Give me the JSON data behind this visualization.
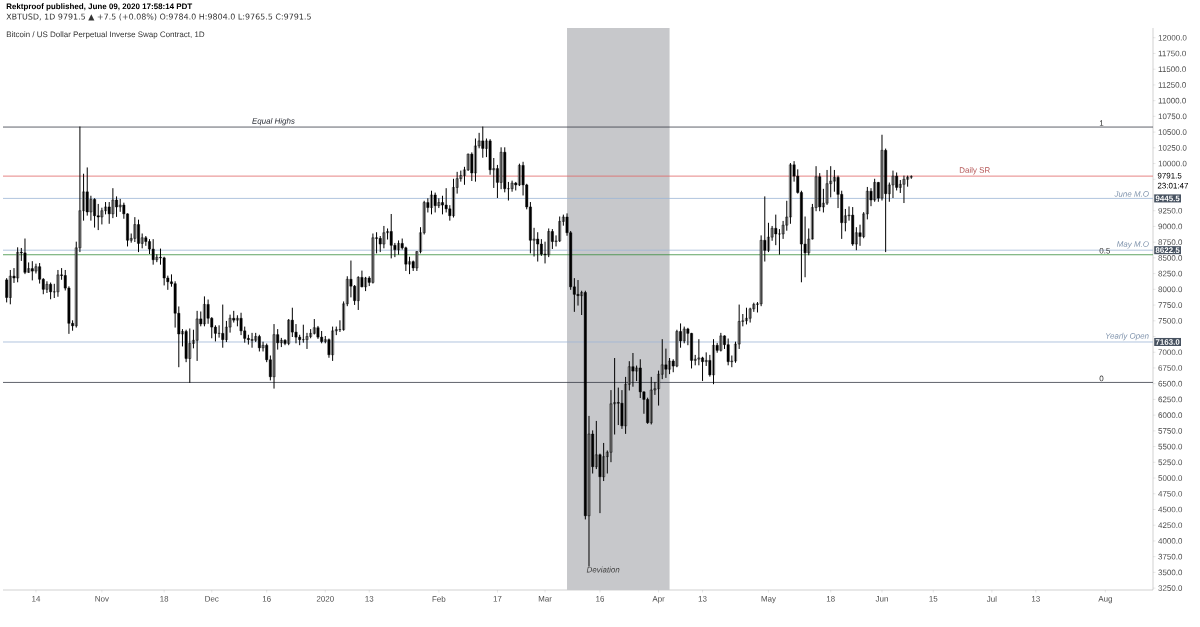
{
  "chart_data": {
    "type": "candlestick",
    "title": "Bitcoin / US Dollar Perpetual Inverse Swap Contract, 1D",
    "subtitle": "XBTUSD, 1D 9791.5 ▲ +7.5 (+0.08%) O:9784.0 H:9804.0 L:9765.5 C:9791.5",
    "color": "#000000",
    "x": [
      "2019-10-06",
      "2019-10-07",
      "2019-10-08",
      "2019-10-09",
      "2019-10-10",
      "2019-10-11",
      "2019-10-12",
      "2019-10-13",
      "2019-10-14",
      "2019-10-15",
      "2019-10-16",
      "2019-10-17",
      "2019-10-18",
      "2019-10-19",
      "2019-10-20",
      "2019-10-21",
      "2019-10-22",
      "2019-10-23",
      "2019-10-24",
      "2019-10-25",
      "2019-10-26",
      "2019-10-27",
      "2019-10-28",
      "2019-10-29",
      "2019-10-30",
      "2019-10-31",
      "2019-11-01",
      "2019-11-02",
      "2019-11-03",
      "2019-11-04",
      "2019-11-05",
      "2019-11-06",
      "2019-11-07",
      "2019-11-08",
      "2019-11-09",
      "2019-11-10",
      "2019-11-11",
      "2019-11-12",
      "2019-11-13",
      "2019-11-14",
      "2019-11-15",
      "2019-11-16",
      "2019-11-17",
      "2019-11-18",
      "2019-11-19",
      "2019-11-20",
      "2019-11-21",
      "2019-11-22",
      "2019-11-23",
      "2019-11-24",
      "2019-11-25",
      "2019-11-26",
      "2019-11-27",
      "2019-11-28",
      "2019-11-29",
      "2019-11-30",
      "2019-12-01",
      "2019-12-02",
      "2019-12-03",
      "2019-12-04",
      "2019-12-05",
      "2019-12-06",
      "2019-12-07",
      "2019-12-08",
      "2019-12-09",
      "2019-12-10",
      "2019-12-11",
      "2019-12-12",
      "2019-12-13",
      "2019-12-14",
      "2019-12-15",
      "2019-12-16",
      "2019-12-17",
      "2019-12-18",
      "2019-12-19",
      "2019-12-20",
      "2019-12-21",
      "2019-12-22",
      "2019-12-23",
      "2019-12-24",
      "2019-12-25",
      "2019-12-26",
      "2019-12-27",
      "2019-12-28",
      "2019-12-29",
      "2019-12-30",
      "2019-12-31",
      "2020-01-01",
      "2020-01-02",
      "2020-01-03",
      "2020-01-04",
      "2020-01-05",
      "2020-01-06",
      "2020-01-07",
      "2020-01-08",
      "2020-01-09",
      "2020-01-10",
      "2020-01-11",
      "2020-01-12",
      "2020-01-13",
      "2020-01-14",
      "2020-01-15",
      "2020-01-16",
      "2020-01-17",
      "2020-01-18",
      "2020-01-19",
      "2020-01-20",
      "2020-01-21",
      "2020-01-22",
      "2020-01-23",
      "2020-01-24",
      "2020-01-25",
      "2020-01-26",
      "2020-01-27",
      "2020-01-28",
      "2020-01-29",
      "2020-01-30",
      "2020-01-31",
      "2020-02-01",
      "2020-02-02",
      "2020-02-03",
      "2020-02-04",
      "2020-02-05",
      "2020-02-06",
      "2020-02-07",
      "2020-02-08",
      "2020-02-09",
      "2020-02-10",
      "2020-02-11",
      "2020-02-12",
      "2020-02-13",
      "2020-02-14",
      "2020-02-15",
      "2020-02-16",
      "2020-02-17",
      "2020-02-18",
      "2020-02-19",
      "2020-02-20",
      "2020-02-21",
      "2020-02-22",
      "2020-02-23",
      "2020-02-24",
      "2020-02-25",
      "2020-02-26",
      "2020-02-27",
      "2020-02-28",
      "2020-02-29",
      "2020-03-01",
      "2020-03-02",
      "2020-03-03",
      "2020-03-04",
      "2020-03-05",
      "2020-03-06",
      "2020-03-07",
      "2020-03-08",
      "2020-03-09",
      "2020-03-10",
      "2020-03-11",
      "2020-03-12",
      "2020-03-13",
      "2020-03-14",
      "2020-03-15",
      "2020-03-16",
      "2020-03-17",
      "2020-03-18",
      "2020-03-19",
      "2020-03-20",
      "2020-03-21",
      "2020-03-22",
      "2020-03-23",
      "2020-03-24",
      "2020-03-25",
      "2020-03-26",
      "2020-03-27",
      "2020-03-28",
      "2020-03-29",
      "2020-03-30",
      "2020-03-31",
      "2020-04-01",
      "2020-04-02",
      "2020-04-03",
      "2020-04-04",
      "2020-04-05",
      "2020-04-06",
      "2020-04-07",
      "2020-04-08",
      "2020-04-09",
      "2020-04-10",
      "2020-04-11",
      "2020-04-12",
      "2020-04-13",
      "2020-04-14",
      "2020-04-15",
      "2020-04-16",
      "2020-04-17",
      "2020-04-18",
      "2020-04-19",
      "2020-04-20",
      "2020-04-21",
      "2020-04-22",
      "2020-04-23",
      "2020-04-24",
      "2020-04-25",
      "2020-04-26",
      "2020-04-27",
      "2020-04-28",
      "2020-04-29",
      "2020-04-30",
      "2020-05-01",
      "2020-05-02",
      "2020-05-03",
      "2020-05-04",
      "2020-05-05",
      "2020-05-06",
      "2020-05-07",
      "2020-05-08",
      "2020-05-09",
      "2020-05-10",
      "2020-05-11",
      "2020-05-12",
      "2020-05-13",
      "2020-05-14",
      "2020-05-15",
      "2020-05-16",
      "2020-05-17",
      "2020-05-18",
      "2020-05-19",
      "2020-05-20",
      "2020-05-21",
      "2020-05-22",
      "2020-05-23",
      "2020-05-24",
      "2020-05-25",
      "2020-05-26",
      "2020-05-27",
      "2020-05-28",
      "2020-05-29",
      "2020-05-30",
      "2020-05-31",
      "2020-06-01",
      "2020-06-02",
      "2020-06-03",
      "2020-06-04",
      "2020-06-05",
      "2020-06-06",
      "2020-06-07",
      "2020-06-08",
      "2020-06-09"
    ],
    "ohlc": [
      [
        8150,
        8170,
        7800,
        7870
      ],
      [
        7870,
        8300,
        7770,
        8210
      ],
      [
        8210,
        8330,
        8110,
        8180
      ],
      [
        8180,
        8660,
        8120,
        8590
      ],
      [
        8590,
        8650,
        8460,
        8580
      ],
      [
        8580,
        8800,
        8250,
        8270
      ],
      [
        8270,
        8420,
        8270,
        8330
      ],
      [
        8330,
        8440,
        8150,
        8290
      ],
      [
        8290,
        8400,
        8260,
        8360
      ],
      [
        8360,
        8410,
        8100,
        8160
      ],
      [
        8160,
        8170,
        7930,
        8000
      ],
      [
        8000,
        8120,
        7950,
        8080
      ],
      [
        8080,
        8100,
        7850,
        7960
      ],
      [
        7960,
        8080,
        7870,
        7960
      ],
      [
        7960,
        8300,
        7890,
        8230
      ],
      [
        8230,
        8330,
        8160,
        8220
      ],
      [
        8220,
        8300,
        7990,
        8020
      ],
      [
        8020,
        8040,
        7300,
        7460
      ],
      [
        7460,
        7500,
        7350,
        7420
      ],
      [
        7420,
        8750,
        7400,
        8660
      ],
      [
        8660,
        10580,
        8600,
        9250
      ],
      [
        9250,
        9830,
        9100,
        9550
      ],
      [
        9550,
        9930,
        9180,
        9230
      ],
      [
        9230,
        9480,
        9100,
        9430
      ],
      [
        9430,
        9440,
        8990,
        9170
      ],
      [
        9170,
        9350,
        8950,
        9150
      ],
      [
        9150,
        9290,
        9040,
        9250
      ],
      [
        9250,
        9380,
        9200,
        9310
      ],
      [
        9310,
        9380,
        9050,
        9200
      ],
      [
        9200,
        9600,
        9140,
        9420
      ],
      [
        9420,
        9470,
        9160,
        9310
      ],
      [
        9310,
        9430,
        9240,
        9340
      ],
      [
        9340,
        9370,
        9130,
        9200
      ],
      [
        9200,
        9200,
        8690,
        8780
      ],
      [
        8780,
        8880,
        8750,
        8810
      ],
      [
        8810,
        9140,
        8760,
        9030
      ],
      [
        9030,
        9100,
        8600,
        8730
      ],
      [
        8730,
        8880,
        8660,
        8820
      ],
      [
        8820,
        8840,
        8700,
        8760
      ],
      [
        8760,
        8790,
        8570,
        8640
      ],
      [
        8640,
        8790,
        8400,
        8470
      ],
      [
        8470,
        8550,
        8440,
        8510
      ],
      [
        8510,
        8640,
        8400,
        8500
      ],
      [
        8500,
        8510,
        8070,
        8180
      ],
      [
        8180,
        8210,
        8000,
        8120
      ],
      [
        8120,
        8230,
        8050,
        8090
      ],
      [
        8090,
        8120,
        7400,
        7620
      ],
      [
        7620,
        7720,
        6770,
        7290
      ],
      [
        7290,
        7360,
        7100,
        7330
      ],
      [
        7330,
        7350,
        6850,
        6900
      ],
      [
        6900,
        7370,
        6520,
        7140
      ],
      [
        7140,
        7350,
        7070,
        7190
      ],
      [
        7190,
        7650,
        6870,
        7530
      ],
      [
        7530,
        7640,
        7420,
        7450
      ],
      [
        7450,
        7880,
        7420,
        7760
      ],
      [
        7760,
        7830,
        7460,
        7540
      ],
      [
        7540,
        7550,
        7230,
        7400
      ],
      [
        7400,
        7420,
        7180,
        7300
      ],
      [
        7300,
        7420,
        7240,
        7300
      ],
      [
        7300,
        7750,
        7080,
        7200
      ],
      [
        7200,
        7490,
        7170,
        7400
      ],
      [
        7400,
        7590,
        7320,
        7540
      ],
      [
        7540,
        7650,
        7480,
        7510
      ],
      [
        7510,
        7580,
        7420,
        7540
      ],
      [
        7540,
        7620,
        7280,
        7340
      ],
      [
        7340,
        7400,
        7160,
        7220
      ],
      [
        7220,
        7270,
        7130,
        7200
      ],
      [
        7200,
        7300,
        7080,
        7190
      ],
      [
        7190,
        7300,
        7170,
        7250
      ],
      [
        7250,
        7270,
        7020,
        7070
      ],
      [
        7070,
        7160,
        7020,
        7110
      ],
      [
        7110,
        7130,
        6850,
        6880
      ],
      [
        6880,
        6940,
        6560,
        6610
      ],
      [
        6610,
        7440,
        6430,
        7280
      ],
      [
        7280,
        7360,
        7050,
        7150
      ],
      [
        7150,
        7220,
        7090,
        7190
      ],
      [
        7190,
        7200,
        7120,
        7140
      ],
      [
        7140,
        7520,
        7120,
        7510
      ],
      [
        7510,
        7700,
        7250,
        7320
      ],
      [
        7320,
        7440,
        7150,
        7240
      ],
      [
        7240,
        7270,
        7120,
        7200
      ],
      [
        7200,
        7430,
        7160,
        7200
      ],
      [
        7200,
        7300,
        7060,
        7250
      ],
      [
        7250,
        7360,
        7230,
        7300
      ],
      [
        7300,
        7520,
        7290,
        7390
      ],
      [
        7390,
        7410,
        7220,
        7240
      ],
      [
        7240,
        7330,
        7150,
        7170
      ],
      [
        7170,
        7250,
        7150,
        7200
      ],
      [
        7200,
        7210,
        6920,
        6960
      ],
      [
        6960,
        7400,
        6870,
        7340
      ],
      [
        7340,
        7400,
        7280,
        7360
      ],
      [
        7360,
        7500,
        7330,
        7360
      ],
      [
        7360,
        7800,
        7350,
        7770
      ],
      [
        7770,
        8200,
        7740,
        8160
      ],
      [
        8160,
        8450,
        7880,
        8050
      ],
      [
        8050,
        8060,
        7760,
        7820
      ],
      [
        7820,
        8200,
        7680,
        8190
      ],
      [
        8190,
        8290,
        8040,
        8040
      ],
      [
        8040,
        8190,
        7980,
        8180
      ],
      [
        8180,
        8200,
        8060,
        8110
      ],
      [
        8110,
        8880,
        8100,
        8820
      ],
      [
        8820,
        8900,
        8580,
        8810
      ],
      [
        8810,
        8840,
        8600,
        8720
      ],
      [
        8720,
        9000,
        8660,
        8900
      ],
      [
        8900,
        8960,
        8800,
        8920
      ],
      [
        8920,
        9190,
        8500,
        8700
      ],
      [
        8700,
        8730,
        8520,
        8630
      ],
      [
        8630,
        8770,
        8560,
        8730
      ],
      [
        8730,
        8800,
        8640,
        8660
      ],
      [
        8660,
        8670,
        8300,
        8400
      ],
      [
        8400,
        8510,
        8250,
        8440
      ],
      [
        8440,
        8450,
        8300,
        8340
      ],
      [
        8340,
        8600,
        8300,
        8600
      ],
      [
        8600,
        8980,
        8580,
        8900
      ],
      [
        8900,
        9400,
        8880,
        9380
      ],
      [
        9380,
        9440,
        9230,
        9300
      ],
      [
        9300,
        9560,
        9200,
        9500
      ],
      [
        9500,
        9530,
        9230,
        9330
      ],
      [
        9330,
        9440,
        9300,
        9380
      ],
      [
        9380,
        9480,
        9200,
        9340
      ],
      [
        9340,
        9600,
        9230,
        9280
      ],
      [
        9280,
        9330,
        9100,
        9170
      ],
      [
        9170,
        9750,
        9150,
        9620
      ],
      [
        9620,
        9860,
        9530,
        9760
      ],
      [
        9760,
        9880,
        9720,
        9810
      ],
      [
        9810,
        9940,
        9670,
        9900
      ],
      [
        9900,
        10150,
        9890,
        10150
      ],
      [
        10150,
        10170,
        9730,
        9850
      ],
      [
        9850,
        10390,
        9720,
        10280
      ],
      [
        10280,
        10480,
        10250,
        10360
      ],
      [
        10360,
        10580,
        10100,
        10240
      ],
      [
        10240,
        10390,
        10110,
        10360
      ],
      [
        10360,
        10380,
        9830,
        9900
      ],
      [
        9900,
        10080,
        9620,
        9920
      ],
      [
        9920,
        9970,
        9460,
        9700
      ],
      [
        9700,
        10250,
        9600,
        10180
      ],
      [
        10180,
        10250,
        9550,
        9600
      ],
      [
        9600,
        9700,
        9420,
        9600
      ],
      [
        9600,
        9720,
        9560,
        9690
      ],
      [
        9690,
        9700,
        9580,
        9660
      ],
      [
        9660,
        9990,
        9650,
        9970
      ],
      [
        9970,
        10020,
        9500,
        9660
      ],
      [
        9660,
        9670,
        9280,
        9310
      ],
      [
        9310,
        9380,
        8580,
        8780
      ],
      [
        8780,
        8970,
        8530,
        8800
      ],
      [
        8800,
        8900,
        8450,
        8720
      ],
      [
        8720,
        8790,
        8540,
        8560
      ],
      [
        8560,
        8750,
        8420,
        8550
      ],
      [
        8550,
        8960,
        8520,
        8920
      ],
      [
        8920,
        8950,
        8650,
        8760
      ],
      [
        8760,
        8850,
        8690,
        8770
      ],
      [
        8770,
        9150,
        8760,
        9080
      ],
      [
        9080,
        9180,
        9020,
        9150
      ],
      [
        9150,
        9200,
        8860,
        8900
      ],
      [
        8900,
        8920,
        8000,
        8040
      ],
      [
        8040,
        8170,
        7650,
        7920
      ],
      [
        7920,
        8140,
        7750,
        7900
      ],
      [
        7900,
        7970,
        7600,
        7950
      ],
      [
        7950,
        7970,
        4350,
        4400
      ],
      [
        4400,
        5980,
        3600,
        5700
      ],
      [
        5700,
        5750,
        5080,
        5180
      ],
      [
        5180,
        5900,
        5150,
        5370
      ],
      [
        5370,
        5380,
        4450,
        5020
      ],
      [
        5020,
        5550,
        4960,
        5340
      ],
      [
        5340,
        5430,
        5080,
        5410
      ],
      [
        5410,
        6390,
        5260,
        6180
      ],
      [
        6180,
        6900,
        5700,
        6200
      ],
      [
        6200,
        6430,
        5850,
        6190
      ],
      [
        6190,
        6390,
        5790,
        5830
      ],
      [
        5830,
        6600,
        5710,
        6490
      ],
      [
        6490,
        6850,
        6400,
        6770
      ],
      [
        6770,
        6980,
        6460,
        6700
      ],
      [
        6700,
        6780,
        6550,
        6750
      ],
      [
        6750,
        6880,
        6280,
        6370
      ],
      [
        6370,
        6370,
        6030,
        6250
      ],
      [
        6250,
        6270,
        5870,
        5880
      ],
      [
        5880,
        6600,
        5860,
        6400
      ],
      [
        6400,
        6520,
        6330,
        6420
      ],
      [
        6420,
        6700,
        6160,
        6650
      ],
      [
        6650,
        7200,
        6580,
        6800
      ],
      [
        6800,
        7050,
        6600,
        6730
      ],
      [
        6730,
        6900,
        6660,
        6860
      ],
      [
        6860,
        6880,
        6690,
        6780
      ],
      [
        6780,
        7350,
        6770,
        7330
      ],
      [
        7330,
        7450,
        7080,
        7180
      ],
      [
        7180,
        7400,
        7150,
        7370
      ],
      [
        7370,
        7380,
        7120,
        7300
      ],
      [
        7300,
        7300,
        6750,
        6870
      ],
      [
        6870,
        6950,
        6800,
        6890
      ],
      [
        6890,
        7200,
        6800,
        6910
      ],
      [
        6910,
        6920,
        6550,
        6850
      ],
      [
        6850,
        6990,
        6790,
        6870
      ],
      [
        6870,
        6950,
        6620,
        6640
      ],
      [
        6640,
        7200,
        6500,
        7110
      ],
      [
        7110,
        7140,
        7000,
        7030
      ],
      [
        7030,
        7300,
        7020,
        7260
      ],
      [
        7260,
        7260,
        7060,
        7120
      ],
      [
        7120,
        7210,
        6800,
        6850
      ],
      [
        6850,
        6940,
        6770,
        6860
      ],
      [
        6860,
        7160,
        6840,
        7130
      ],
      [
        7130,
        7750,
        7060,
        7490
      ],
      [
        7490,
        7600,
        7420,
        7500
      ],
      [
        7500,
        7700,
        7450,
        7540
      ],
      [
        7540,
        7700,
        7480,
        7690
      ],
      [
        7690,
        7780,
        7650,
        7760
      ],
      [
        7760,
        7790,
        7640,
        7770
      ],
      [
        7770,
        8850,
        7740,
        8780
      ],
      [
        8780,
        9470,
        8450,
        8620
      ],
      [
        8620,
        9050,
        8600,
        8830
      ],
      [
        8830,
        9000,
        8780,
        8970
      ],
      [
        8970,
        9180,
        8710,
        8880
      ],
      [
        8880,
        8950,
        8560,
        8880
      ],
      [
        8880,
        9080,
        8810,
        9020
      ],
      [
        9020,
        9400,
        8940,
        9150
      ],
      [
        9150,
        10000,
        9050,
        9980
      ],
      [
        9980,
        10030,
        9720,
        9800
      ],
      [
        9800,
        9900,
        9530,
        9540
      ],
      [
        9540,
        9560,
        8120,
        8720
      ],
      [
        8720,
        9150,
        8200,
        8580
      ],
      [
        8580,
        8960,
        8550,
        8800
      ],
      [
        8800,
        9350,
        8800,
        9300
      ],
      [
        9300,
        9950,
        9250,
        9790
      ],
      [
        9790,
        9840,
        9250,
        9310
      ],
      [
        9310,
        9590,
        9230,
        9370
      ],
      [
        9370,
        9890,
        9350,
        9680
      ],
      [
        9680,
        9950,
        9470,
        9720
      ],
      [
        9720,
        9890,
        9560,
        9780
      ],
      [
        9780,
        9800,
        9300,
        9510
      ],
      [
        9510,
        9560,
        8810,
        9060
      ],
      [
        9060,
        9270,
        8930,
        9170
      ],
      [
        9170,
        9310,
        9100,
        9180
      ],
      [
        9180,
        9300,
        8700,
        8720
      ],
      [
        8720,
        8980,
        8630,
        8900
      ],
      [
        8900,
        9020,
        8700,
        8840
      ],
      [
        8840,
        9220,
        8820,
        9200
      ],
      [
        9200,
        9620,
        9120,
        9560
      ],
      [
        9560,
        9600,
        9330,
        9420
      ],
      [
        9420,
        9750,
        9400,
        9700
      ],
      [
        9700,
        9700,
        9400,
        9450
      ],
      [
        9450,
        10450,
        9420,
        10210
      ],
      [
        10210,
        10230,
        8600,
        9520
      ],
      [
        9520,
        9690,
        9400,
        9660
      ],
      [
        9660,
        9880,
        9460,
        9800
      ],
      [
        9800,
        9850,
        9580,
        9620
      ],
      [
        9620,
        9730,
        9540,
        9670
      ],
      [
        9670,
        9800,
        9380,
        9750
      ],
      [
        9750,
        9800,
        9640,
        9784
      ],
      [
        9784,
        9804,
        9765.5,
        9791.5
      ]
    ],
    "xlim": [
      "2019-10-05",
      "2020-08-14"
    ],
    "xticks": [
      {
        "value": "2019-10-14",
        "label": "14"
      },
      {
        "value": "2019-11-01",
        "label": "Nov"
      },
      {
        "value": "2019-11-18",
        "label": "18"
      },
      {
        "value": "2019-12-01",
        "label": "Dec"
      },
      {
        "value": "2019-12-16",
        "label": "16"
      },
      {
        "value": "2020-01-01",
        "label": "2020"
      },
      {
        "value": "2020-01-13",
        "label": "13"
      },
      {
        "value": "2020-02-01",
        "label": "Feb"
      },
      {
        "value": "2020-02-17",
        "label": "17"
      },
      {
        "value": "2020-03-01",
        "label": "Mar"
      },
      {
        "value": "2020-03-16",
        "label": "16"
      },
      {
        "value": "2020-04-01",
        "label": "Apr"
      },
      {
        "value": "2020-04-13",
        "label": "13"
      },
      {
        "value": "2020-05-01",
        "label": "May"
      },
      {
        "value": "2020-05-18",
        "label": "18"
      },
      {
        "value": "2020-06-01",
        "label": "Jun"
      },
      {
        "value": "2020-06-15",
        "label": "15"
      },
      {
        "value": "2020-07-01",
        "label": "Jul"
      },
      {
        "value": "2020-07-13",
        "label": "13"
      },
      {
        "value": "2020-08-01",
        "label": "Aug"
      }
    ],
    "ylim": [
      3220,
      12155
    ],
    "yticks": [
      {
        "value": 3250,
        "label": "3250.0"
      },
      {
        "value": 3500,
        "label": "3500.0"
      },
      {
        "value": 3750,
        "label": "3750.0"
      },
      {
        "value": 4000,
        "label": "4000.0"
      },
      {
        "value": 4250,
        "label": "4250.0"
      },
      {
        "value": 4500,
        "label": "4500.0"
      },
      {
        "value": 4750,
        "label": "4750.0"
      },
      {
        "value": 5000,
        "label": "5000.0"
      },
      {
        "value": 5250,
        "label": "5250.0"
      },
      {
        "value": 5500,
        "label": "5500.0"
      },
      {
        "value": 5750,
        "label": "5750.0"
      },
      {
        "value": 6000,
        "label": "6000.0"
      },
      {
        "value": 6250,
        "label": "6250.0"
      },
      {
        "value": 6500,
        "label": "6500.0"
      },
      {
        "value": 6750,
        "label": "6750.0"
      },
      {
        "value": 7000,
        "label": "7000.0"
      },
      {
        "value": 7250,
        "label": null
      },
      {
        "value": 7500,
        "label": "7500.0"
      },
      {
        "value": 7750,
        "label": "7750.0"
      },
      {
        "value": 8000,
        "label": "8000.0"
      },
      {
        "value": 8250,
        "label": "8250.0"
      },
      {
        "value": 8500,
        "label": "8500.0"
      },
      {
        "value": 8750,
        "label": "8750.0"
      },
      {
        "value": 9000,
        "label": "9000.0"
      },
      {
        "value": 9250,
        "label": "9250.0"
      },
      {
        "value": 9500,
        "label": null
      },
      {
        "value": 9750,
        "label": null
      },
      {
        "value": 10000,
        "label": "10000.0"
      },
      {
        "value": 10250,
        "label": "10250.0"
      },
      {
        "value": 10500,
        "label": "10500.0"
      },
      {
        "value": 10750,
        "label": "10750.0"
      },
      {
        "value": 11000,
        "label": "11000.0"
      },
      {
        "value": 11250,
        "label": "11250.0"
      },
      {
        "value": 11500,
        "label": "11500.0"
      },
      {
        "value": 11750,
        "label": "11750.0"
      },
      {
        "value": 12000,
        "label": "12000.0"
      }
    ],
    "ref_lines": [
      {
        "axis": "y",
        "value": 10580,
        "label": "Equal Highs",
        "color": "#363a45"
      },
      {
        "axis": "y",
        "value": 9800,
        "label": "Daily SR",
        "color": "#e06666"
      },
      {
        "axis": "y",
        "value": 9445.5,
        "label": "June M.O",
        "color": "#9db6d6"
      },
      {
        "axis": "y",
        "value": 8622.5,
        "label": "May M.O",
        "color": "#9db6d6"
      },
      {
        "axis": "y",
        "value": 8550,
        "color": "#388e3c"
      },
      {
        "axis": "y",
        "value": 7163,
        "label": "Yearly Open",
        "color": "#9db6d6"
      },
      {
        "axis": "y",
        "value": 6520,
        "color": "#363a45"
      }
    ],
    "bands": [
      {
        "axis": "x",
        "from": "2020-03-07",
        "to": "2020-04-04",
        "label": "Deviation",
        "color": "#c7c8cb"
      }
    ],
    "annotations": [
      "Rektproof published, June 09, 2020 17:58:14 PDT",
      "9791.5",
      "23:01:47",
      {
        "text": "1",
        "x": "2020-07-30",
        "y": 10580
      },
      {
        "text": "0.5",
        "x": "2020-07-30",
        "y": 8550
      },
      {
        "text": "0",
        "x": "2020-07-30",
        "y": 6520
      },
      {
        "text": "9445.5",
        "y": 9445.5
      },
      {
        "text": "8622.5",
        "y": 8622.5
      },
      {
        "text": "7163.0",
        "y": 7163
      }
    ]
  }
}
